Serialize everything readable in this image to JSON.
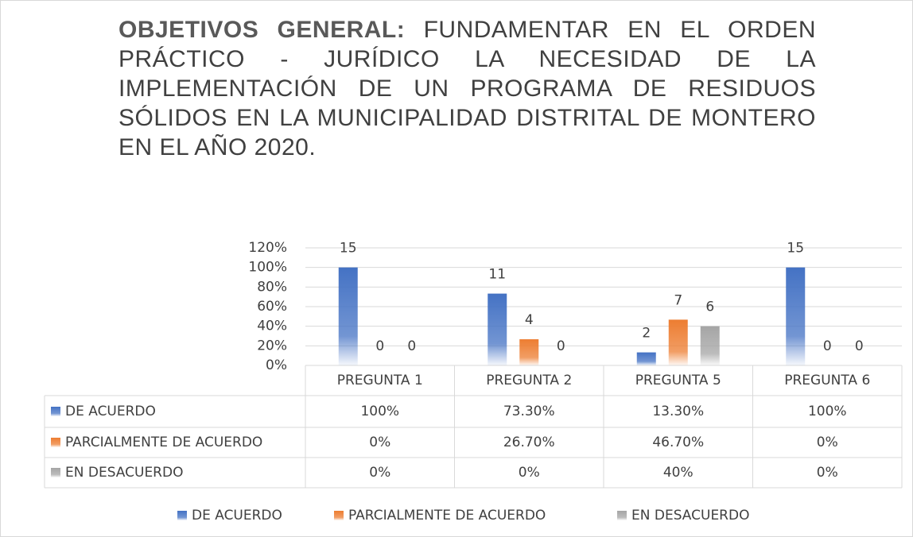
{
  "chart_data": {
    "type": "bar",
    "title_label": "OBJETIVOS GENERAL:",
    "title": "FUNDAMENTAR EN EL ORDEN PRÁCTICO - JURÍDICO LA NECESIDAD DE LA IMPLEMENTACIÓN DE UN PROGRAMA DE RESIDUOS SÓLIDOS EN LA MUNICIPALIDAD DISTRITAL DE MONTERO EN EL AÑO 2020.",
    "categories": [
      "PREGUNTA 1",
      "PREGUNTA 2",
      "PREGUNTA 5",
      "PREGUNTA 6"
    ],
    "series": [
      {
        "name": "DE ACUERDO",
        "color": "#4472c4",
        "values": [
          100,
          73.3,
          13.3,
          100
        ],
        "value_labels": [
          "100%",
          "73.30%",
          "13.30%",
          "100%"
        ],
        "counts": [
          15,
          11,
          2,
          15
        ]
      },
      {
        "name": "PARCIALMENTE DE ACUERDO",
        "color": "#ed7d31",
        "values": [
          0,
          26.7,
          46.7,
          0
        ],
        "value_labels": [
          "0%",
          "26.70%",
          "46.70%",
          "0%"
        ],
        "counts": [
          0,
          4,
          7,
          0
        ]
      },
      {
        "name": "EN DESACUERDO",
        "color": "#a5a5a5",
        "values": [
          0,
          0,
          40,
          0
        ],
        "value_labels": [
          "0%",
          "0%",
          "40%",
          "0%"
        ],
        "counts": [
          0,
          0,
          6,
          0
        ]
      }
    ],
    "ylim": [
      0,
      120
    ],
    "yticks": [
      {
        "value": 0,
        "label": "0%"
      },
      {
        "value": 20,
        "label": "20%"
      },
      {
        "value": 40,
        "label": "40%"
      },
      {
        "value": 60,
        "label": "60%"
      },
      {
        "value": 80,
        "label": "80%"
      },
      {
        "value": 100,
        "label": "100%"
      },
      {
        "value": 120,
        "label": "120%"
      }
    ],
    "grid": true,
    "legend": "bottom"
  }
}
